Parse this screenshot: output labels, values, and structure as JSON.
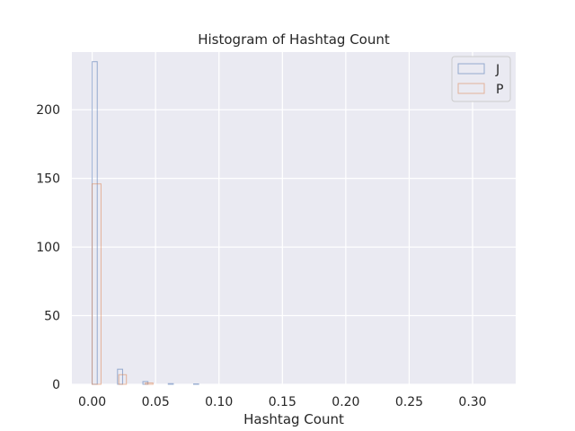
{
  "chart_data": {
    "type": "bar",
    "title": "Histogram of Hashtag Count",
    "xlabel": "Hashtag Count",
    "ylabel": "",
    "xlim": [
      -0.016,
      0.334
    ],
    "ylim": [
      0,
      242
    ],
    "xticks": [
      0.0,
      0.05,
      0.1,
      0.15,
      0.2,
      0.25,
      0.3
    ],
    "xtick_labels": [
      "0.00",
      "0.05",
      "0.10",
      "0.15",
      "0.20",
      "0.25",
      "0.30"
    ],
    "yticks": [
      0,
      50,
      100,
      150,
      200
    ],
    "ytick_labels": [
      "0",
      "50",
      "100",
      "150",
      "200"
    ],
    "grid": true,
    "legend_position": "top-right",
    "series": [
      {
        "name": "J",
        "color": "#4c72b0",
        "bins": [
          {
            "x0": 0.0,
            "x1": 0.004,
            "count": 235
          },
          {
            "x0": 0.02,
            "x1": 0.024,
            "count": 11
          },
          {
            "x0": 0.04,
            "x1": 0.044,
            "count": 2
          },
          {
            "x0": 0.06,
            "x1": 0.064,
            "count": 0.5
          },
          {
            "x0": 0.08,
            "x1": 0.084,
            "count": 0.3
          }
        ]
      },
      {
        "name": "P",
        "color": "#dd8452",
        "bins": [
          {
            "x0": 0.0,
            "x1": 0.007,
            "count": 146
          },
          {
            "x0": 0.021,
            "x1": 0.027,
            "count": 7
          },
          {
            "x0": 0.042,
            "x1": 0.048,
            "count": 1
          }
        ]
      }
    ]
  }
}
